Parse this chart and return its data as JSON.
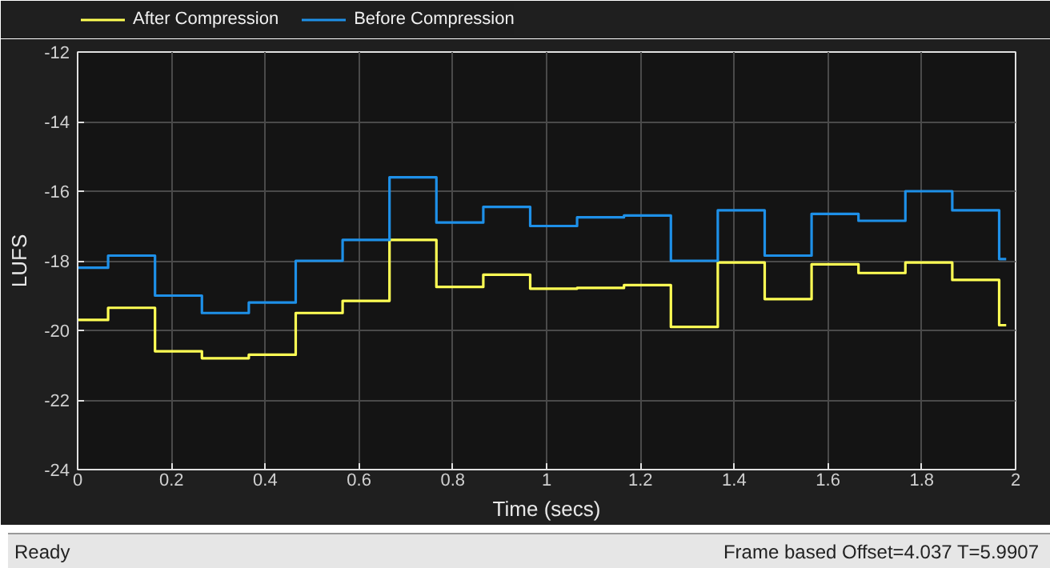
{
  "chart_data": {
    "type": "step",
    "xlabel": "Time (secs)",
    "ylabel": "LUFS",
    "x": [
      0,
      0.065,
      0.165,
      0.265,
      0.365,
      0.465,
      0.565,
      0.665,
      0.765,
      0.865,
      0.965,
      1.065,
      1.165,
      1.265,
      1.365,
      1.465,
      1.565,
      1.665,
      1.765,
      1.865,
      1.965,
      1.98
    ],
    "series": [
      {
        "name": "After Compression",
        "color": "#ffff54",
        "values": [
          -19.7,
          -19.35,
          -20.6,
          -20.8,
          -20.7,
          -19.5,
          -19.15,
          -17.4,
          -18.75,
          -18.4,
          -18.8,
          -18.78,
          -18.7,
          -19.9,
          -18.05,
          -19.1,
          -18.1,
          -18.35,
          -18.05,
          -18.55,
          -19.85,
          -19.85
        ]
      },
      {
        "name": "Before Compression",
        "color": "#1e90e8",
        "values": [
          -18.2,
          -17.85,
          -19.0,
          -19.5,
          -19.2,
          -18.0,
          -17.4,
          -15.6,
          -16.9,
          -16.45,
          -17.0,
          -16.75,
          -16.7,
          -18.0,
          -16.55,
          -17.85,
          -16.65,
          -16.85,
          -16.0,
          -16.55,
          -17.95,
          -17.95
        ]
      }
    ],
    "xlim": [
      0,
      2
    ],
    "ylim": [
      -24,
      -12
    ],
    "xticks": [
      0,
      0.2,
      0.4,
      0.6,
      0.8,
      1,
      1.2,
      1.4,
      1.6,
      1.8,
      2
    ],
    "yticks": [
      -24,
      -22,
      -20,
      -18,
      -16,
      -14,
      -12
    ],
    "grid": true,
    "legend": "top",
    "line_style": "solid",
    "annotations": [
      "Ready",
      "Frame based  Offset=4.037  T=5.9907"
    ]
  }
}
